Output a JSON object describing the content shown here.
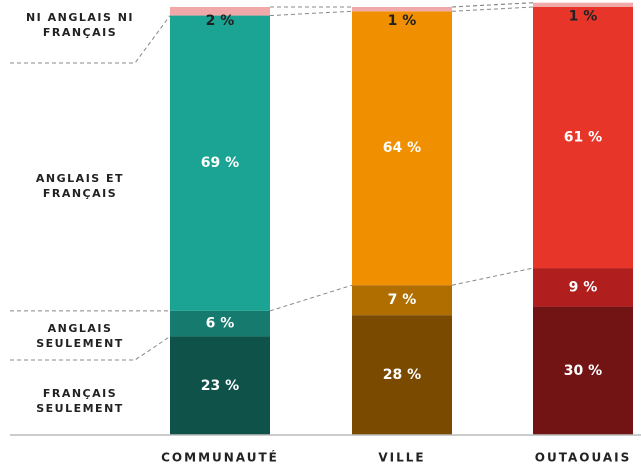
{
  "chart_data": {
    "type": "stacked_bar",
    "categories": [
      "COMMUNAUTÉ",
      "VILLE",
      "OUTAOUAIS"
    ],
    "ylim": [
      0,
      100
    ],
    "series": [
      {
        "name": "FRANÇAIS SEULEMENT",
        "colors": [
          "#0f5249",
          "#7a4a00",
          "#731414"
        ],
        "values": [
          23,
          28,
          30
        ],
        "value_labels": [
          "23 %",
          "28 %",
          "30 %"
        ]
      },
      {
        "name": "ANGLAIS SEULEMENT",
        "colors": [
          "#167a6e",
          "#b06d00",
          "#b01e1e"
        ],
        "values": [
          6,
          7,
          9
        ],
        "value_labels": [
          "6 %",
          "7 %",
          "9 %"
        ]
      },
      {
        "name": "ANGLAIS ET FRANÇAIS",
        "colors": [
          "#1ba394",
          "#f09000",
          "#e8352a"
        ],
        "values": [
          69,
          64,
          61
        ],
        "value_labels": [
          "69 %",
          "64 %",
          "61 %"
        ]
      },
      {
        "name": "NI ANGLAIS NI FRANÇAIS",
        "colors": [
          "#f0a8a8",
          "#f0a8a8",
          "#f0a8a8"
        ],
        "values": [
          2,
          1,
          1
        ],
        "value_labels": [
          "2 %",
          "1 %",
          "1 %"
        ]
      }
    ]
  }
}
